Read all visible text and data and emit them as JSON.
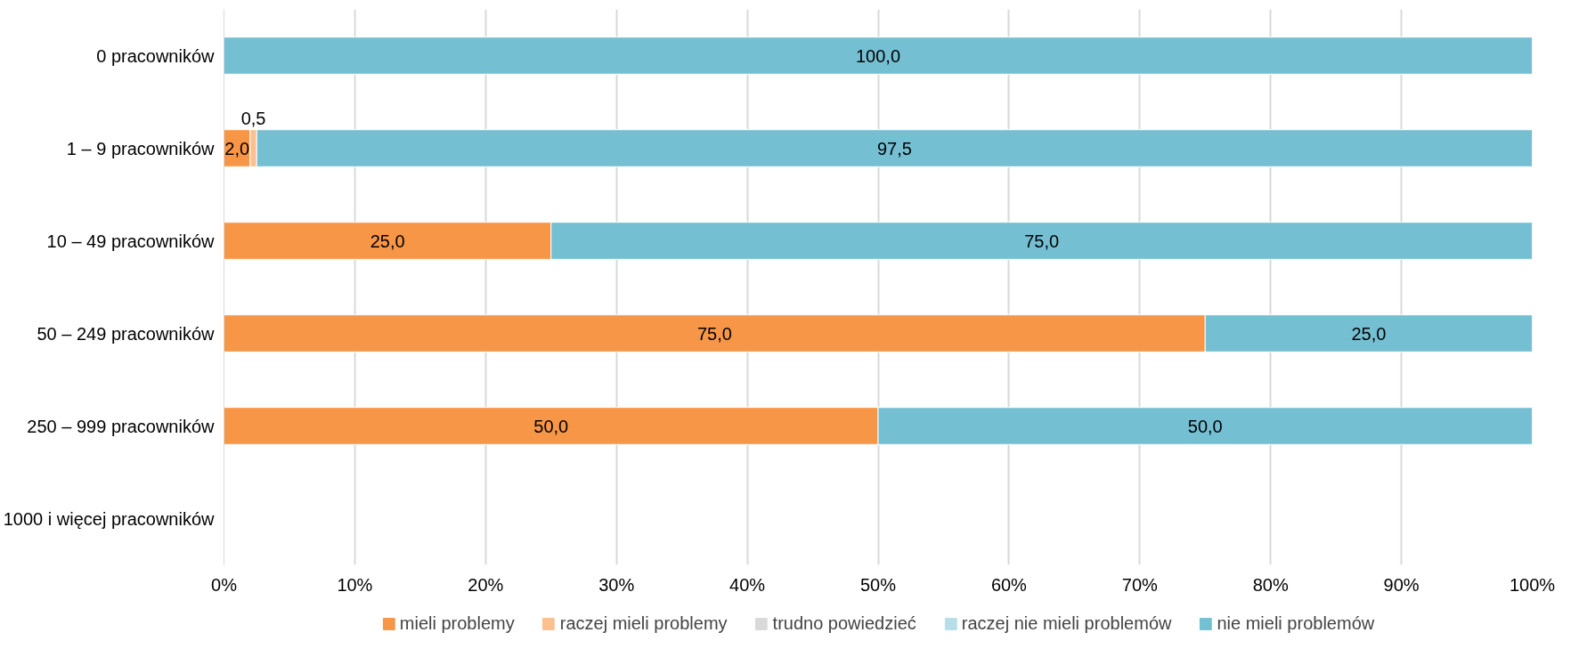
{
  "chart_data": {
    "type": "bar",
    "orientation": "horizontal",
    "stacked": true,
    "categories": [
      "0 pracowników",
      "1 – 9 pracowników",
      "10 – 49 pracowników",
      "50 – 249 pracowników",
      "250 – 999 pracowników",
      "1000 i więcej pracowników"
    ],
    "series": [
      {
        "name": "mieli problemy",
        "color": "#f79646",
        "values": [
          null,
          2.0,
          25.0,
          75.0,
          50.0,
          null
        ],
        "value_labels": [
          null,
          "2,0",
          "25,0",
          "75,0",
          "50,0",
          null
        ]
      },
      {
        "name": "raczej mieli problemy",
        "color": "#fac090",
        "values": [
          null,
          0.5,
          null,
          null,
          null,
          null
        ],
        "value_labels": [
          null,
          "0,5",
          null,
          null,
          null,
          null
        ]
      },
      {
        "name": "trudno powiedzieć",
        "color": "#d9d9d9",
        "values": [
          null,
          null,
          null,
          null,
          null,
          null
        ]
      },
      {
        "name": "raczej nie mieli problemów",
        "color": "#b7dee8",
        "values": [
          null,
          null,
          null,
          null,
          null,
          null
        ]
      },
      {
        "name": "nie mieli problemów",
        "color": "#75bfd3",
        "values": [
          100.0,
          97.5,
          75.0,
          25.0,
          50.0,
          null
        ],
        "value_labels": [
          "100,0",
          "97,5",
          "75,0",
          "25,0",
          "50,0",
          null
        ]
      }
    ],
    "xlim": [
      0,
      100
    ],
    "xticks": [
      {
        "value": 0,
        "label": "0%"
      },
      {
        "value": 10,
        "label": "10%"
      },
      {
        "value": 20,
        "label": "20%"
      },
      {
        "value": 30,
        "label": "30%"
      },
      {
        "value": 40,
        "label": "40%"
      },
      {
        "value": 50,
        "label": "50%"
      },
      {
        "value": 60,
        "label": "60%"
      },
      {
        "value": 70,
        "label": "70%"
      },
      {
        "value": 80,
        "label": "80%"
      },
      {
        "value": 90,
        "label": "90%"
      },
      {
        "value": 100,
        "label": "100%"
      }
    ],
    "grid": "x",
    "legend": "bottom"
  }
}
